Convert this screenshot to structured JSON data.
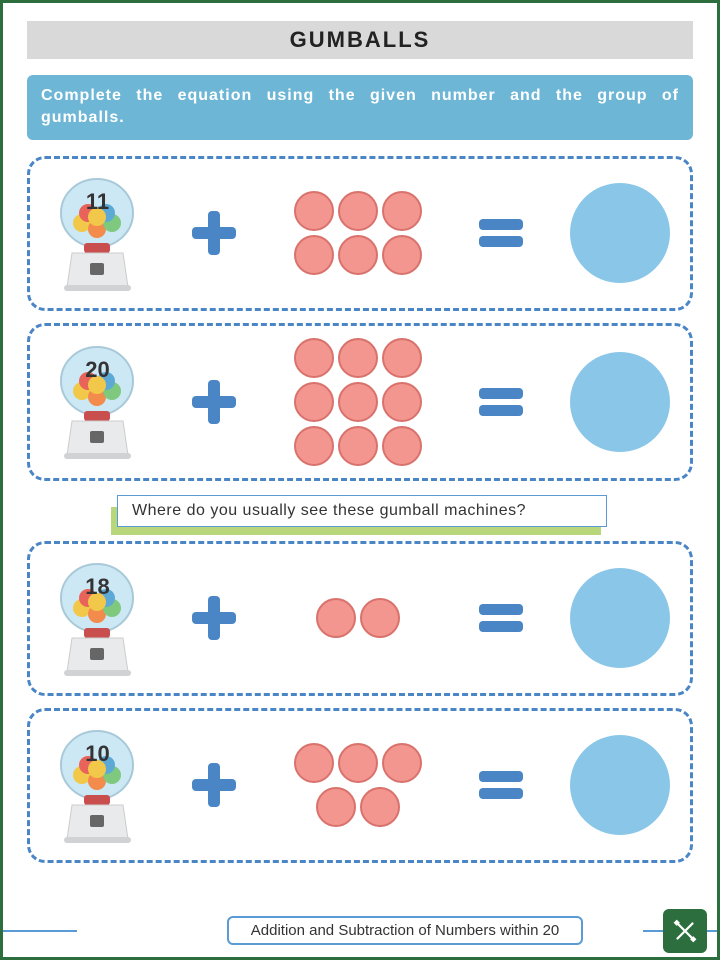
{
  "title": "GUMBALLS",
  "instruction": "Complete the equation using the given number and the group of gumballs.",
  "question": "Where do you usually see these gumball machines?",
  "footer_label": "Addition and Subtraction of Numbers within 20",
  "colors": {
    "border": "#2d6e3e",
    "title_bg": "#d9d9d9",
    "instruction_bg": "#6db6d6",
    "dash_border": "#4a86c5",
    "operator": "#4a86c5",
    "dot_fill": "#f2968f",
    "dot_stroke": "#d9726c",
    "answer_fill": "#8ac6e8",
    "machine_glass": "#cde8f5",
    "machine_base": "#e8eaec",
    "question_accent": "#b8d67a",
    "question_border": "#5a9bd5",
    "machine_balls": [
      "#f2c84b",
      "#f28b4b",
      "#7fc97f",
      "#e8645a",
      "#5da9d6",
      "#f2c84b"
    ]
  },
  "problems": [
    {
      "number": "11",
      "dots_rows": [
        3,
        3
      ]
    },
    {
      "number": "20",
      "dots_rows": [
        3,
        3,
        3
      ]
    },
    {
      "number": "18",
      "dots_rows": [
        2
      ]
    },
    {
      "number": "10",
      "dots_rows": [
        3,
        2
      ]
    }
  ]
}
